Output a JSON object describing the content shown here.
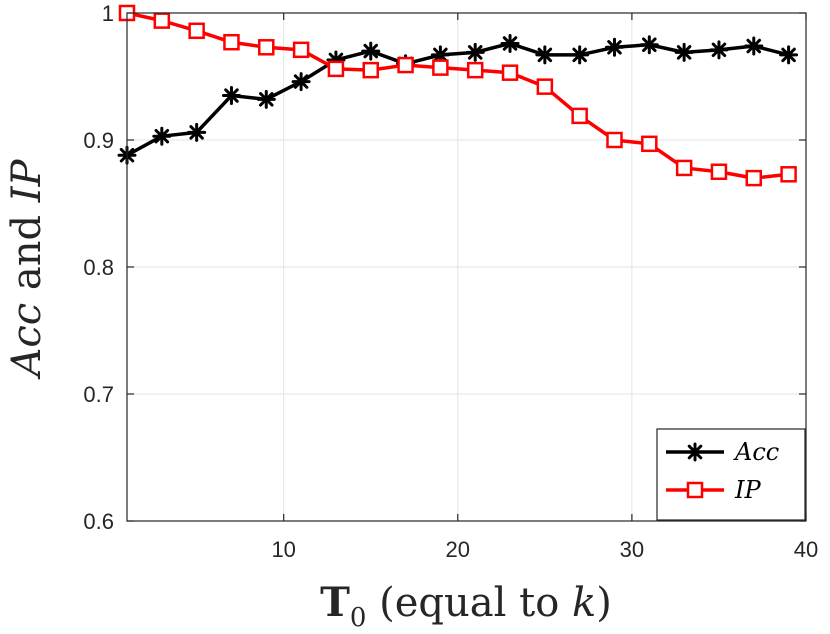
{
  "chart_data": {
    "type": "line",
    "xlabel": "T0 (equal to k)",
    "xlabel_parts": {
      "main": "T",
      "sub": "0",
      "rest": " (equal to ",
      "var": "k",
      "end": ")"
    },
    "ylabel": "Acc and IP",
    "ylabel_parts": {
      "a": "Acc",
      "mid": " and ",
      "b": "IP"
    },
    "xlim": [
      1,
      40
    ],
    "ylim": [
      0.6,
      1.0
    ],
    "xticks": [
      10,
      20,
      30,
      40
    ],
    "xtick_labels": [
      "10",
      "20",
      "30",
      "40"
    ],
    "yticks": [
      0.6,
      0.7,
      0.8,
      0.9,
      1.0
    ],
    "ytick_labels": [
      "0.6",
      "0.7",
      "0.8",
      "0.9",
      "1"
    ],
    "grid": true,
    "legend_position": "bottom-right",
    "series": [
      {
        "name": "Acc",
        "color": "#000000",
        "marker": "asterisk",
        "x": [
          1,
          3,
          5,
          7,
          9,
          11,
          13,
          15,
          17,
          19,
          21,
          23,
          25,
          27,
          29,
          31,
          33,
          35,
          37,
          39
        ],
        "values": [
          0.888,
          0.903,
          0.906,
          0.935,
          0.932,
          0.946,
          0.963,
          0.97,
          0.96,
          0.967,
          0.969,
          0.976,
          0.967,
          0.967,
          0.973,
          0.975,
          0.969,
          0.971,
          0.974,
          0.967
        ]
      },
      {
        "name": "IP",
        "color": "#ff0000",
        "marker": "square",
        "x": [
          1,
          3,
          5,
          7,
          9,
          11,
          13,
          15,
          17,
          19,
          21,
          23,
          25,
          27,
          29,
          31,
          33,
          35,
          37,
          39
        ],
        "values": [
          1.0,
          0.994,
          0.986,
          0.977,
          0.973,
          0.971,
          0.956,
          0.955,
          0.959,
          0.957,
          0.955,
          0.953,
          0.942,
          0.919,
          0.9,
          0.897,
          0.878,
          0.875,
          0.87,
          0.873
        ]
      }
    ]
  }
}
